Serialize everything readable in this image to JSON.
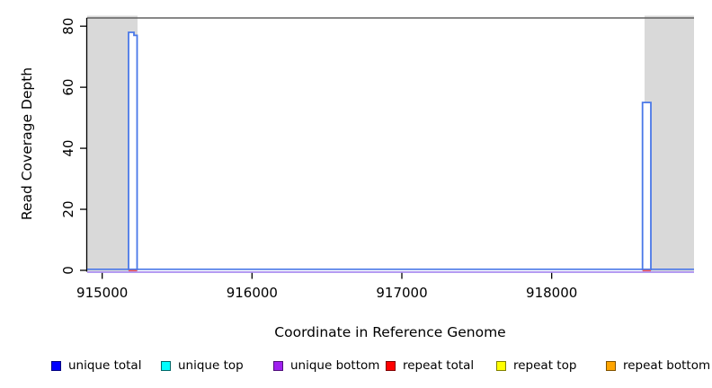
{
  "chart_data": {
    "type": "area",
    "title": "",
    "xlabel": "Coordinate in Reference Genome",
    "ylabel": "Read Coverage Depth",
    "xlim": [
      914900,
      918950
    ],
    "ylim": [
      0,
      82.7
    ],
    "x_ticks": [
      915000,
      916000,
      917000,
      918000
    ],
    "y_ticks": [
      0,
      20,
      40,
      60,
      80
    ],
    "grid": false,
    "legend_position": "bottom",
    "repeat_regions": [
      [
        914900,
        915236
      ],
      [
        918620,
        918950
      ]
    ],
    "series": [
      {
        "name": "unique total",
        "color": "#4a78e8",
        "fill": "#ffffff",
        "baseline": 0,
        "peaks": [
          {
            "points": [
              [
                915176,
                0
              ],
              [
                915176,
                78
              ],
              [
                915212,
                78
              ],
              [
                915212,
                77
              ],
              [
                915233,
                77
              ],
              [
                915233,
                0
              ]
            ]
          },
          {
            "points": [
              [
                918606,
                0
              ],
              [
                918606,
                55
              ],
              [
                918662,
                55
              ],
              [
                918662,
                0
              ]
            ]
          }
        ]
      },
      {
        "name": "unique bottom",
        "color": "#a88df0",
        "baseline": 0
      },
      {
        "name": "repeat total",
        "color": "#ff5a50",
        "baseline": 0,
        "segments": [
          [
            915176,
            915233
          ],
          [
            918606,
            918662
          ]
        ]
      }
    ],
    "legend": [
      {
        "label": "unique total",
        "fill": "#0000ff",
        "border": "#000080"
      },
      {
        "label": "unique top",
        "fill": "#00ffff",
        "border": "#006868"
      },
      {
        "label": "unique bottom",
        "fill": "#a020f0",
        "border": "#50107a"
      },
      {
        "label": "repeat total",
        "fill": "#ff0000",
        "border": "#800000"
      },
      {
        "label": "repeat top",
        "fill": "#ffff00",
        "border": "#808000"
      },
      {
        "label": "repeat bottom",
        "fill": "#ffa500",
        "border": "#805200"
      }
    ],
    "colors": {
      "repeat_band": "#d9d9d9",
      "plot_top_line": "#606060",
      "axis": "#000000",
      "background": "#ffffff"
    }
  }
}
